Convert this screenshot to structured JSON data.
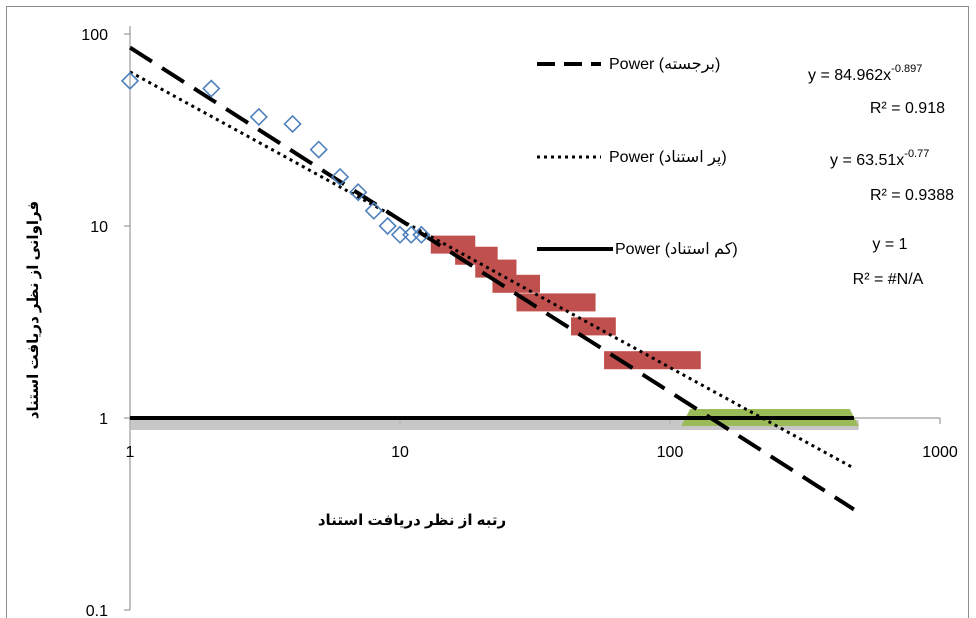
{
  "chart_data": {
    "type": "scatter",
    "x_scale": "log",
    "y_scale": "log",
    "xlim": [
      1,
      1000
    ],
    "ylim": [
      0.1,
      100
    ],
    "x_ticks": [
      "1",
      "10",
      "100",
      "1000"
    ],
    "y_ticks": [
      "0.1",
      "1",
      "10",
      "100"
    ],
    "xlabel": "رتبه از نظر دریافت استناد",
    "ylabel": "فراوانی از نظر دریافت استناد",
    "series": [
      {
        "role": "blue-diamond-points",
        "color": "#4f81bd",
        "marker": "diamond-open",
        "x": [
          1,
          2,
          3,
          4,
          5,
          6,
          7,
          8,
          9,
          10,
          11,
          12
        ],
        "y": [
          57,
          52,
          37,
          34,
          25,
          18,
          15,
          12,
          10,
          9,
          9,
          9
        ]
      },
      {
        "role": "red-band-steps",
        "color": "#c0504d",
        "marker": "thick-band",
        "segments": [
          {
            "x0": 13,
            "x1": 19,
            "y": 8
          },
          {
            "x0": 16,
            "x1": 23,
            "y": 7
          },
          {
            "x0": 19,
            "x1": 27,
            "y": 6
          },
          {
            "x0": 22,
            "x1": 33,
            "y": 5
          },
          {
            "x0": 27,
            "x1": 53,
            "y": 4
          },
          {
            "x0": 43,
            "x1": 63,
            "y": 3
          },
          {
            "x0": 57,
            "x1": 130,
            "y": 2
          }
        ]
      },
      {
        "role": "green-band",
        "color": "#9bbb59",
        "marker": "thick-band",
        "segments": [
          {
            "x0": 110,
            "x1": 500,
            "y": 1
          }
        ]
      },
      {
        "name": "Power (برجسته)",
        "style": "dashed",
        "color": "#000000",
        "trendline": {
          "a": 84.962,
          "b": -0.897,
          "x_range": [
            1,
            480
          ]
        }
      },
      {
        "name": "Power (پر استناد)",
        "style": "dotted",
        "color": "#000000",
        "trendline": {
          "a": 63.51,
          "b": -0.77,
          "x_range": [
            1,
            480
          ]
        }
      },
      {
        "name": "Power (کم استناد)",
        "style": "solid",
        "color": "#000000",
        "trendline": {
          "a": 1,
          "b": 0,
          "x_range": [
            1,
            480
          ]
        }
      }
    ],
    "annotations": [
      {
        "line1": "y = 84.962x",
        "sup": "-0.897",
        "line2": "R² = 0.918"
      },
      {
        "line1": "y = 63.51x",
        "sup": "-0.77",
        "line2": "R² = 0.9388"
      },
      {
        "line1": "y = 1",
        "sup": "",
        "line2": "R² = #N/A"
      }
    ],
    "legend_position": "top-right",
    "grid": false
  }
}
